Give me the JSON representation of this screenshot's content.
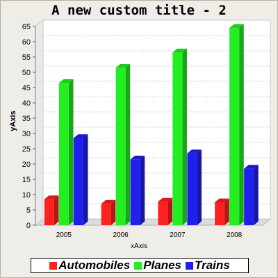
{
  "chart_data": {
    "type": "bar",
    "title": "A new custom title - 2",
    "xlabel": "xAxis",
    "ylabel": "yAxis",
    "categories": [
      "2005",
      "2006",
      "2007",
      "2008"
    ],
    "series": [
      {
        "name": "Automobiles",
        "color": "#ff2020",
        "values": [
          8.5,
          7,
          7.7,
          7.5
        ]
      },
      {
        "name": "Planes",
        "color": "#22ee22",
        "values": [
          46.5,
          51.5,
          56.5,
          64.5
        ]
      },
      {
        "name": "Trains",
        "color": "#2020ee",
        "values": [
          28.5,
          21.5,
          23.5,
          18.5
        ]
      }
    ],
    "ylim": [
      0,
      65
    ],
    "yticks": [
      0,
      5,
      10,
      15,
      20,
      25,
      30,
      35,
      40,
      45,
      50,
      55,
      60,
      65
    ],
    "grid": true,
    "legend_position": "bottom"
  }
}
